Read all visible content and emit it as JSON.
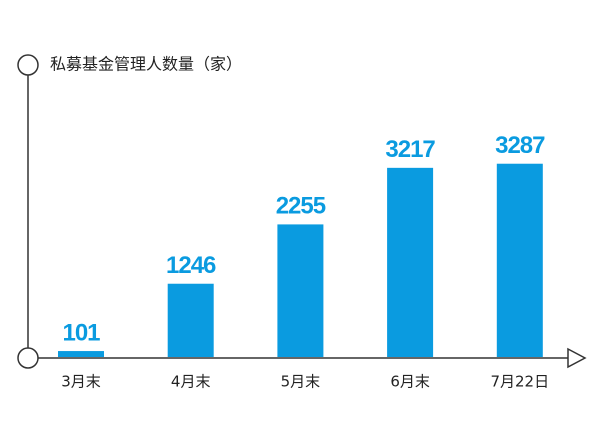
{
  "chart_data": {
    "type": "bar",
    "title": "私募基金管理人数量（家）",
    "categories": [
      "3月末",
      "4月末",
      "5月末",
      "6月末",
      "7月22日"
    ],
    "values": [
      101,
      1246,
      2255,
      3217,
      3287
    ],
    "color": "#0a9be0"
  }
}
